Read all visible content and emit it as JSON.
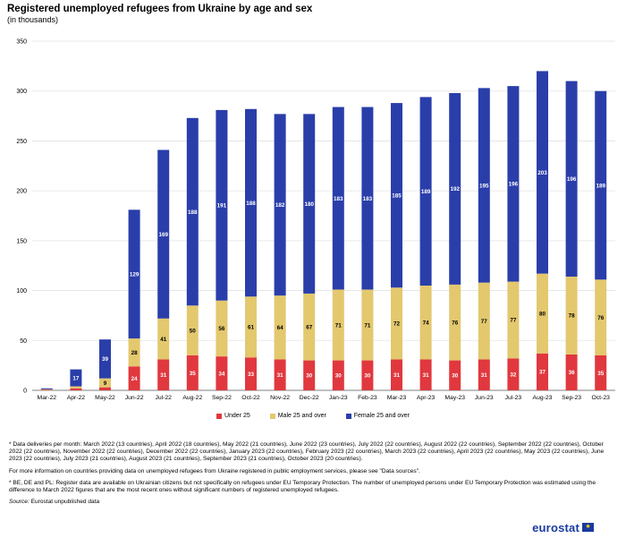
{
  "header": {
    "title": "Registered unemployed refugees from Ukraine by age and sex",
    "subtitle": "(in thousands)"
  },
  "chart_data": {
    "type": "bar",
    "stacked": true,
    "title": "Registered unemployed refugees from Ukraine by age and sex",
    "subtitle": "(in thousands)",
    "xlabel": "",
    "ylabel": "",
    "ylim": [
      0,
      350
    ],
    "yticks": [
      0,
      50,
      100,
      150,
      200,
      250,
      300,
      350
    ],
    "grid": true,
    "legend_position": "bottom",
    "categories": [
      "Mar-22",
      "Apr-22",
      "May-22",
      "Jun-22",
      "Jul-22",
      "Aug-22",
      "Sep-22",
      "Oct-22",
      "Nov-22",
      "Dec-22",
      "Jan-23",
      "Feb-23",
      "Mar-23",
      "Apr-23",
      "May-23",
      "Jun-23",
      "Jul-23",
      "Aug-23",
      "Sep-23",
      "Oct-23"
    ],
    "series": [
      {
        "name": "Under 25",
        "color": "#e0383e",
        "values": [
          0.5,
          2,
          3,
          24,
          31,
          35,
          34,
          33,
          31,
          30,
          30,
          30,
          31,
          31,
          30,
          31,
          32,
          37,
          36,
          35
        ],
        "labels": [
          "",
          "",
          "",
          "24",
          "31",
          "35",
          "34",
          "33",
          "31",
          "30",
          "30",
          "30",
          "31",
          "31",
          "30",
          "31",
          "32",
          "37",
          "36",
          "35"
        ]
      },
      {
        "name": "Male 25 and over",
        "color": "#e3c86e",
        "values": [
          0.5,
          2,
          9,
          28,
          41,
          50,
          56,
          61,
          64,
          67,
          71,
          71,
          72,
          74,
          76,
          77,
          77,
          80,
          78,
          76
        ],
        "labels": [
          "",
          "",
          "9",
          "28",
          "41",
          "50",
          "56",
          "61",
          "64",
          "67",
          "71",
          "71",
          "72",
          "74",
          "76",
          "77",
          "77",
          "80",
          "78",
          "76"
        ]
      },
      {
        "name": "Female 25 and over",
        "color": "#2a3eaa",
        "values": [
          1,
          17,
          39,
          129,
          169,
          188,
          191,
          188,
          182,
          180,
          183,
          183,
          185,
          189,
          192,
          195,
          196,
          203,
          196,
          189
        ],
        "labels": [
          "",
          "17",
          "39",
          "129",
          "169",
          "188",
          "191",
          "188",
          "182",
          "180",
          "183",
          "183",
          "185",
          "189",
          "192",
          "195",
          "196",
          "203",
          "196",
          "189"
        ]
      }
    ]
  },
  "notes": {
    "note1": "* Data deliveries per month: March 2022 (13 countries), April 2022 (18 countries), May 2022 (21 countries), June 2022 (23 countries), July 2022 (22 countries), August 2022 (22 countries), September 2022 (22 countries), October 2022 (22 countries), November 2022 (22 countries), December 2022 (22 countries), January 2023 (22 countries), February 2023 (22 countries), March 2023 (22 countries), April 2023 (22 countries), May 2023 (22 countries), June 2023 (22 countries), July 2023 (21 countries), August 2023 (21 countries), September 2023 (21 countries), October 2023 (20 countries).",
    "note2": "For more information on countries providing data on unemployed refugees from Ukraine registered in public employment services, please see \"Data sources\".",
    "note3": "* BE, DE and PL: Register data are available on Ukrainian citizens but not specifically on refugees under EU Temporary Protection. The number of unemployed persons under EU Temporary Protection was estimated using the difference to March 2022 figures that are the most recent ones without significant numbers of registered unemployed refugees.",
    "source_label": "Source:",
    "source_text": "Eurostat unpublished data"
  },
  "logo": {
    "text": "eurostat",
    "icon": "eu-flag-icon"
  }
}
